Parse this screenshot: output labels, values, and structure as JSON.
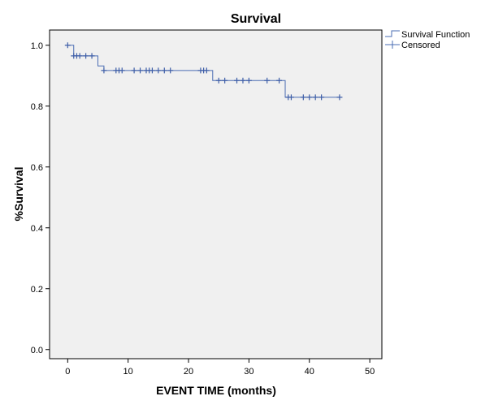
{
  "chart_data": {
    "type": "line",
    "title": "Survival",
    "xlabel": "EVENT TIME (months)",
    "ylabel": "%Survival",
    "xlim": [
      -3,
      52
    ],
    "ylim": [
      -0.03,
      1.05
    ],
    "xticks": [
      0,
      10,
      20,
      30,
      40,
      50
    ],
    "xtick_labels": [
      "0",
      "10",
      "20",
      "30",
      "40",
      "50"
    ],
    "yticks": [
      0.0,
      0.2,
      0.4,
      0.6,
      0.8,
      1.0
    ],
    "ytick_labels": [
      "0.0",
      "0.2",
      "0.4",
      "0.6",
      "0.8",
      "1.0"
    ],
    "grid": false,
    "background_color": "#f0f0f0",
    "line_color": "#4a6cb3",
    "censor_color": "#3f5fa8",
    "legend_position": "top-right-outside",
    "series": [
      {
        "name": "Survival Function",
        "kind": "step",
        "x": [
          0,
          1,
          5,
          6,
          24,
          36,
          45
        ],
        "y": [
          1.0,
          0.965,
          0.932,
          0.917,
          0.884,
          0.829,
          0.829
        ]
      },
      {
        "name": "Censored",
        "kind": "censor-marks",
        "x": [
          0,
          1,
          1.5,
          2,
          3,
          4,
          6,
          8,
          8.5,
          9,
          11,
          12,
          13,
          13.5,
          14,
          15,
          16,
          17,
          22,
          22.5,
          23,
          25,
          26,
          28,
          29,
          30,
          33,
          35,
          36.5,
          37,
          39,
          40,
          41,
          42,
          45
        ],
        "y": [
          1.0,
          0.965,
          0.965,
          0.965,
          0.965,
          0.965,
          0.917,
          0.917,
          0.917,
          0.917,
          0.917,
          0.917,
          0.917,
          0.917,
          0.917,
          0.917,
          0.917,
          0.917,
          0.917,
          0.917,
          0.917,
          0.884,
          0.884,
          0.884,
          0.884,
          0.884,
          0.884,
          0.884,
          0.829,
          0.829,
          0.829,
          0.829,
          0.829,
          0.829,
          0.829
        ]
      }
    ]
  }
}
